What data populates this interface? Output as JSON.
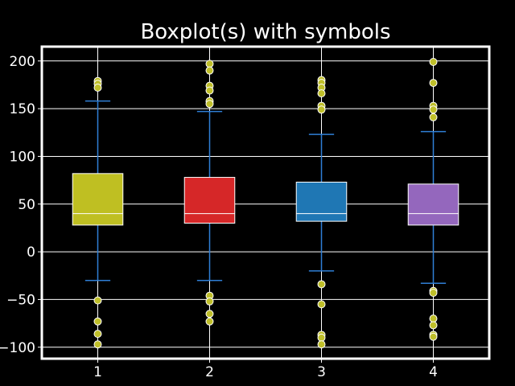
{
  "chart_data": {
    "type": "boxplot",
    "title": "Boxplot(s) with symbols",
    "xlabel": "",
    "ylabel": "",
    "categories": [
      "1",
      "2",
      "3",
      "4"
    ],
    "ylim": [
      -112,
      215
    ],
    "yticks": [
      -100,
      -50,
      0,
      50,
      100,
      150,
      200
    ],
    "grid": true,
    "colors": {
      "background": "#000000",
      "axes_edge": "#ffffff",
      "grid": "#ffffff",
      "whisker": "#2f7fd6",
      "median": "#ffffff",
      "flier_fill": "#bfbf2a",
      "flier_edge": "#ffffff"
    },
    "boxes": [
      {
        "category": "1",
        "color": "#bfbf22",
        "whislo": -30,
        "q1": 28,
        "median": 40,
        "q3": 82,
        "whishi": 158,
        "fliers": [
          179,
          176,
          172,
          -51,
          -73,
          -86,
          -97
        ]
      },
      {
        "category": "2",
        "color": "#d62728",
        "whislo": -30,
        "q1": 30,
        "median": 40,
        "q3": 78,
        "whishi": 147,
        "fliers": [
          197,
          190,
          174,
          169,
          158,
          155,
          -46,
          -52,
          -65,
          -73
        ]
      },
      {
        "category": "3",
        "color": "#1f77b4",
        "whislo": -20,
        "q1": 32,
        "median": 40,
        "q3": 73,
        "whishi": 123,
        "fliers": [
          180,
          177,
          172,
          166,
          153,
          149,
          -34,
          -55,
          -87,
          -90,
          -97
        ]
      },
      {
        "category": "4",
        "color": "#9467bd",
        "whislo": -33,
        "q1": 28,
        "median": 40,
        "q3": 71,
        "whishi": 126,
        "fliers": [
          199,
          177,
          153,
          149,
          141,
          -41,
          -43,
          -70,
          -77,
          -87,
          -89
        ]
      }
    ]
  }
}
